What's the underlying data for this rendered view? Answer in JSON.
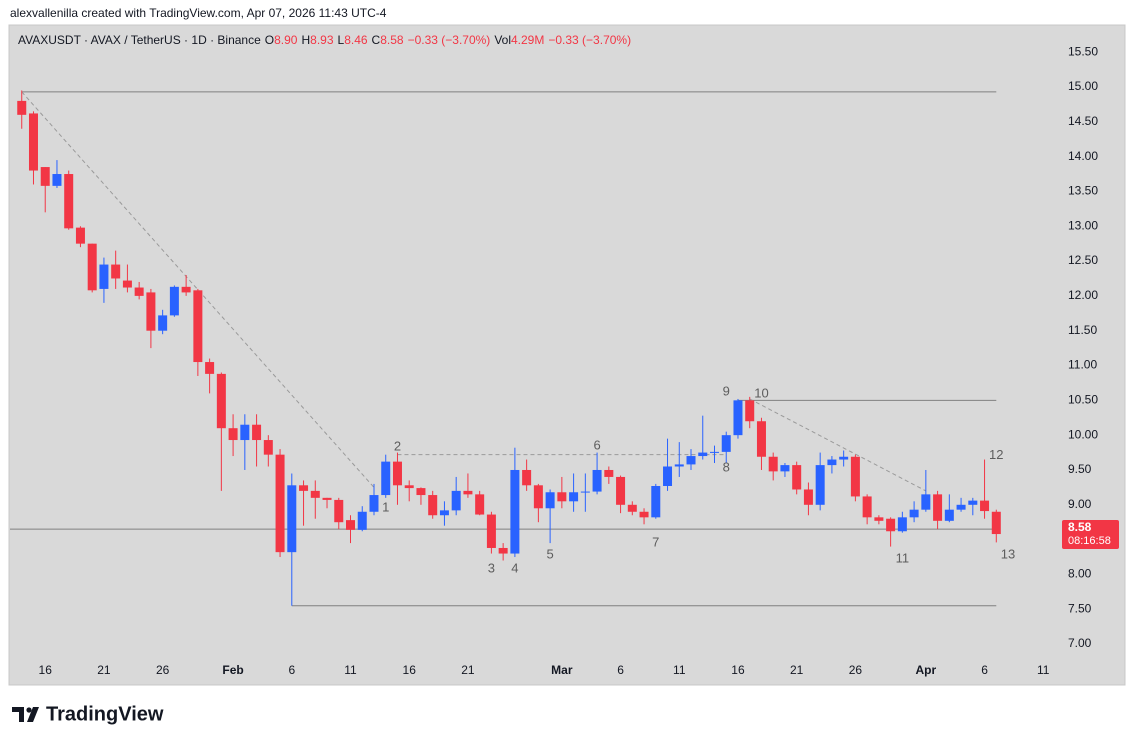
{
  "attribution": "alexvallenilla created with TradingView.com, Apr 07, 2026 11:43 UTC-4",
  "brand": "TradingView",
  "chart_data": {
    "type": "candlestick",
    "legend": {
      "symbol": "AVAXUSDT · AVAX / TetherUS · 1D · Binance",
      "items": [
        {
          "key": "O",
          "value": "8.90"
        },
        {
          "key": "H",
          "value": "8.93"
        },
        {
          "key": "L",
          "value": "8.46"
        },
        {
          "key": "C",
          "value": "8.58"
        },
        {
          "value": "−0.33 (−3.70%)"
        },
        {
          "key": "Vol",
          "value": "4.29M"
        },
        {
          "value": "−0.33 (−3.70%)"
        }
      ]
    },
    "x": [
      "2026-01-14",
      "2026-01-15",
      "2026-01-16",
      "2026-01-17",
      "2026-01-18",
      "2026-01-19",
      "2026-01-20",
      "2026-01-21",
      "2026-01-22",
      "2026-01-23",
      "2026-01-24",
      "2026-01-25",
      "2026-01-26",
      "2026-01-27",
      "2026-01-28",
      "2026-01-29",
      "2026-01-30",
      "2026-01-31",
      "2026-02-01",
      "2026-02-02",
      "2026-02-03",
      "2026-02-04",
      "2026-02-05",
      "2026-02-06",
      "2026-02-07",
      "2026-02-08",
      "2026-02-09",
      "2026-02-10",
      "2026-02-11",
      "2026-02-12",
      "2026-02-13",
      "2026-02-14",
      "2026-02-15",
      "2026-02-16",
      "2026-02-17",
      "2026-02-18",
      "2026-02-19",
      "2026-02-20",
      "2026-02-21",
      "2026-02-22",
      "2026-02-23",
      "2026-02-24",
      "2026-02-25",
      "2026-02-26",
      "2026-02-27",
      "2026-02-28",
      "2026-03-01",
      "2026-03-02",
      "2026-03-03",
      "2026-03-04",
      "2026-03-05",
      "2026-03-06",
      "2026-03-07",
      "2026-03-08",
      "2026-03-09",
      "2026-03-10",
      "2026-03-11",
      "2026-03-12",
      "2026-03-13",
      "2026-03-14",
      "2026-03-15",
      "2026-03-16",
      "2026-03-17",
      "2026-03-18",
      "2026-03-19",
      "2026-03-20",
      "2026-03-21",
      "2026-03-22",
      "2026-03-23",
      "2026-03-24",
      "2026-03-25",
      "2026-03-26",
      "2026-03-27",
      "2026-03-28",
      "2026-03-29",
      "2026-03-30",
      "2026-03-31",
      "2026-04-01",
      "2026-04-02",
      "2026-04-03",
      "2026-04-04",
      "2026-04-05",
      "2026-04-06",
      "2026-04-07"
    ],
    "open": [
      14.8,
      14.62,
      13.85,
      13.58,
      13.75,
      12.98,
      12.75,
      12.1,
      12.45,
      12.22,
      12.12,
      12.05,
      11.5,
      11.72,
      12.13,
      12.08,
      11.05,
      10.88,
      10.1,
      9.93,
      10.15,
      9.93,
      9.72,
      8.32,
      9.28,
      9.2,
      9.1,
      9.07,
      8.78,
      8.64,
      8.9,
      9.14,
      9.62,
      9.28,
      9.24,
      9.14,
      8.85,
      8.92,
      9.2,
      9.15,
      8.86,
      8.38,
      8.3,
      9.5,
      9.28,
      8.95,
      9.18,
      9.05,
      9.18,
      9.19,
      9.5,
      9.4,
      9.0,
      8.9,
      8.82,
      9.27,
      9.55,
      9.58,
      9.7,
      9.75,
      9.76,
      10.0,
      10.5,
      10.2,
      9.69,
      9.48,
      9.57,
      9.22,
      9.0,
      9.57,
      9.65,
      9.69,
      9.12,
      8.82,
      8.8,
      8.62,
      8.82,
      8.93,
      9.15,
      8.77,
      8.93,
      9.0,
      9.06,
      8.9
    ],
    "high": [
      14.95,
      14.65,
      13.85,
      13.95,
      13.8,
      13.0,
      12.75,
      12.55,
      12.65,
      12.45,
      12.2,
      12.1,
      11.8,
      12.15,
      12.3,
      12.1,
      11.1,
      10.9,
      10.3,
      10.3,
      10.3,
      10.0,
      9.8,
      9.45,
      9.35,
      9.35,
      9.1,
      9.1,
      8.85,
      8.98,
      9.3,
      9.72,
      9.75,
      9.35,
      9.25,
      9.2,
      9.05,
      9.4,
      9.45,
      9.2,
      8.9,
      8.45,
      9.82,
      9.65,
      9.3,
      9.22,
      9.4,
      9.45,
      9.45,
      9.75,
      9.55,
      9.42,
      9.05,
      8.95,
      9.3,
      9.95,
      9.9,
      9.8,
      10.28,
      9.85,
      10.05,
      10.52,
      10.55,
      10.25,
      9.75,
      9.6,
      9.62,
      9.32,
      9.75,
      9.7,
      9.78,
      9.72,
      9.15,
      8.85,
      8.82,
      8.9,
      9.05,
      9.5,
      9.2,
      9.15,
      9.1,
      9.1,
      9.65,
      8.93
    ],
    "low": [
      14.4,
      13.6,
      13.2,
      13.55,
      12.95,
      12.7,
      12.05,
      11.9,
      12.1,
      12.05,
      11.95,
      11.25,
      11.45,
      11.7,
      12.0,
      10.85,
      10.6,
      9.2,
      9.7,
      9.5,
      9.55,
      9.55,
      8.25,
      7.55,
      8.7,
      8.8,
      8.95,
      8.65,
      8.45,
      8.62,
      8.85,
      9.1,
      9.0,
      9.05,
      9.0,
      8.8,
      8.7,
      8.85,
      9.1,
      8.85,
      8.3,
      8.2,
      8.25,
      9.2,
      8.75,
      8.45,
      8.95,
      8.9,
      8.9,
      9.15,
      9.3,
      8.88,
      8.85,
      8.72,
      8.8,
      9.2,
      9.4,
      9.5,
      9.65,
      9.6,
      9.6,
      9.95,
      10.1,
      9.5,
      9.35,
      9.4,
      9.15,
      8.85,
      8.92,
      9.45,
      9.55,
      9.05,
      8.72,
      8.72,
      8.4,
      8.6,
      8.75,
      8.9,
      8.65,
      8.75,
      8.9,
      8.85,
      8.8,
      8.46
    ],
    "close": [
      14.6,
      13.8,
      13.58,
      13.75,
      12.97,
      12.75,
      12.08,
      12.45,
      12.25,
      12.12,
      12.0,
      11.5,
      11.72,
      12.13,
      12.05,
      11.05,
      10.88,
      10.1,
      9.93,
      10.15,
      9.93,
      9.72,
      8.32,
      9.28,
      9.2,
      9.1,
      9.07,
      8.75,
      8.64,
      8.9,
      9.14,
      9.62,
      9.28,
      9.24,
      9.14,
      8.85,
      8.92,
      9.2,
      9.15,
      8.86,
      8.38,
      8.3,
      9.5,
      9.28,
      8.95,
      9.18,
      9.05,
      9.18,
      9.19,
      9.5,
      9.4,
      9.0,
      8.9,
      8.82,
      9.27,
      9.55,
      9.58,
      9.7,
      9.75,
      9.76,
      10.0,
      10.5,
      10.2,
      9.69,
      9.48,
      9.57,
      9.22,
      9.0,
      9.57,
      9.65,
      9.69,
      9.12,
      8.82,
      8.77,
      8.62,
      8.82,
      8.93,
      9.15,
      8.77,
      8.93,
      9.0,
      9.06,
      8.91,
      8.58
    ],
    "up_color": "#2962ff",
    "down_color": "#f23645",
    "xlim": [
      "2026-01-13",
      "2026-04-12"
    ],
    "xticks": [
      {
        "value": "2026-01-16",
        "label": "16"
      },
      {
        "value": "2026-01-21",
        "label": "21"
      },
      {
        "value": "2026-01-26",
        "label": "26"
      },
      {
        "value": "2026-02-01",
        "label": "Feb"
      },
      {
        "value": "2026-02-06",
        "label": "6"
      },
      {
        "value": "2026-02-11",
        "label": "11"
      },
      {
        "value": "2026-02-16",
        "label": "16"
      },
      {
        "value": "2026-02-21",
        "label": "21"
      },
      {
        "value": "2026-03-01",
        "label": "Mar"
      },
      {
        "value": "2026-03-06",
        "label": "6"
      },
      {
        "value": "2026-03-11",
        "label": "11"
      },
      {
        "value": "2026-03-16",
        "label": "16"
      },
      {
        "value": "2026-03-21",
        "label": "21"
      },
      {
        "value": "2026-03-26",
        "label": "26"
      },
      {
        "value": "2026-04-01",
        "label": "Apr"
      },
      {
        "value": "2026-04-06",
        "label": "6"
      },
      {
        "value": "2026-04-11",
        "label": "11"
      }
    ],
    "ylim": [
      6.8,
      15.89
    ],
    "yticks": [
      {
        "value": 7,
        "label": "7.00"
      },
      {
        "value": 7.5,
        "label": "7.50"
      },
      {
        "value": 8,
        "label": "8.00"
      },
      {
        "value": 8.5,
        "label": "8.50"
      },
      {
        "value": 9,
        "label": "9.00"
      },
      {
        "value": 9.5,
        "label": "9.50"
      },
      {
        "value": 10,
        "label": "10.00"
      },
      {
        "value": 10.5,
        "label": "10.50"
      },
      {
        "value": 11,
        "label": "11.00"
      },
      {
        "value": 11.5,
        "label": "11.50"
      },
      {
        "value": 12,
        "label": "12.00"
      },
      {
        "value": 12.5,
        "label": "12.50"
      },
      {
        "value": 13,
        "label": "13.00"
      },
      {
        "value": 13.5,
        "label": "13.50"
      },
      {
        "value": 14,
        "label": "14.00"
      },
      {
        "value": 14.5,
        "label": "14.50"
      },
      {
        "value": 15,
        "label": "15.00"
      },
      {
        "value": 15.5,
        "label": "15.50"
      }
    ],
    "grid": false,
    "last_price": {
      "value": 8.58,
      "countdown": "08:16:58"
    },
    "drawings": [
      {
        "x": [
          "2026-01-14",
          "2026-04-07"
        ],
        "values": [
          14.93,
          14.93
        ],
        "dashed": false
      },
      {
        "x": [
          "2026-03-16",
          "2026-04-07"
        ],
        "values": [
          10.5,
          10.5
        ],
        "dashed": false
      },
      {
        "x": [
          "2026-01-13",
          "2026-04-07"
        ],
        "values": [
          8.65,
          8.65
        ],
        "dashed": false
      },
      {
        "x": [
          "2026-02-06",
          "2026-04-07"
        ],
        "values": [
          7.55,
          7.55
        ],
        "dashed": false
      },
      {
        "x": [
          "2026-02-15",
          "2026-03-15"
        ],
        "values": [
          9.72,
          9.72
        ],
        "dashed": true
      },
      {
        "x": [
          "2026-01-14",
          "2026-02-13"
        ],
        "values": [
          14.93,
          9.25
        ],
        "dashed": true
      },
      {
        "x": [
          "2026-03-17",
          "2026-04-01"
        ],
        "values": [
          10.52,
          9.2
        ],
        "dashed": true
      }
    ],
    "annotations": [
      {
        "text": "1",
        "x": "2026-02-14",
        "y": 8.95
      },
      {
        "text": "2",
        "x": "2026-02-15",
        "y": 9.83
      },
      {
        "text": "3",
        "x": "2026-02-23",
        "y": 8.08
      },
      {
        "text": "4",
        "x": "2026-02-25",
        "y": 8.08
      },
      {
        "text": "5",
        "x": "2026-02-28",
        "y": 8.28
      },
      {
        "text": "6",
        "x": "2026-03-04",
        "y": 9.84
      },
      {
        "text": "7",
        "x": "2026-03-09",
        "y": 8.45
      },
      {
        "text": "8",
        "x": "2026-03-15",
        "y": 9.53
      },
      {
        "text": "9",
        "x": "2026-03-15",
        "y": 10.62
      },
      {
        "text": "10",
        "x": "2026-03-18",
        "y": 10.59
      },
      {
        "text": "11",
        "x": "2026-03-30",
        "y": 8.22
      },
      {
        "text": "12",
        "x": "2026-04-07",
        "y": 9.71
      },
      {
        "text": "13",
        "x": "2026-04-08",
        "y": 8.28
      }
    ]
  }
}
